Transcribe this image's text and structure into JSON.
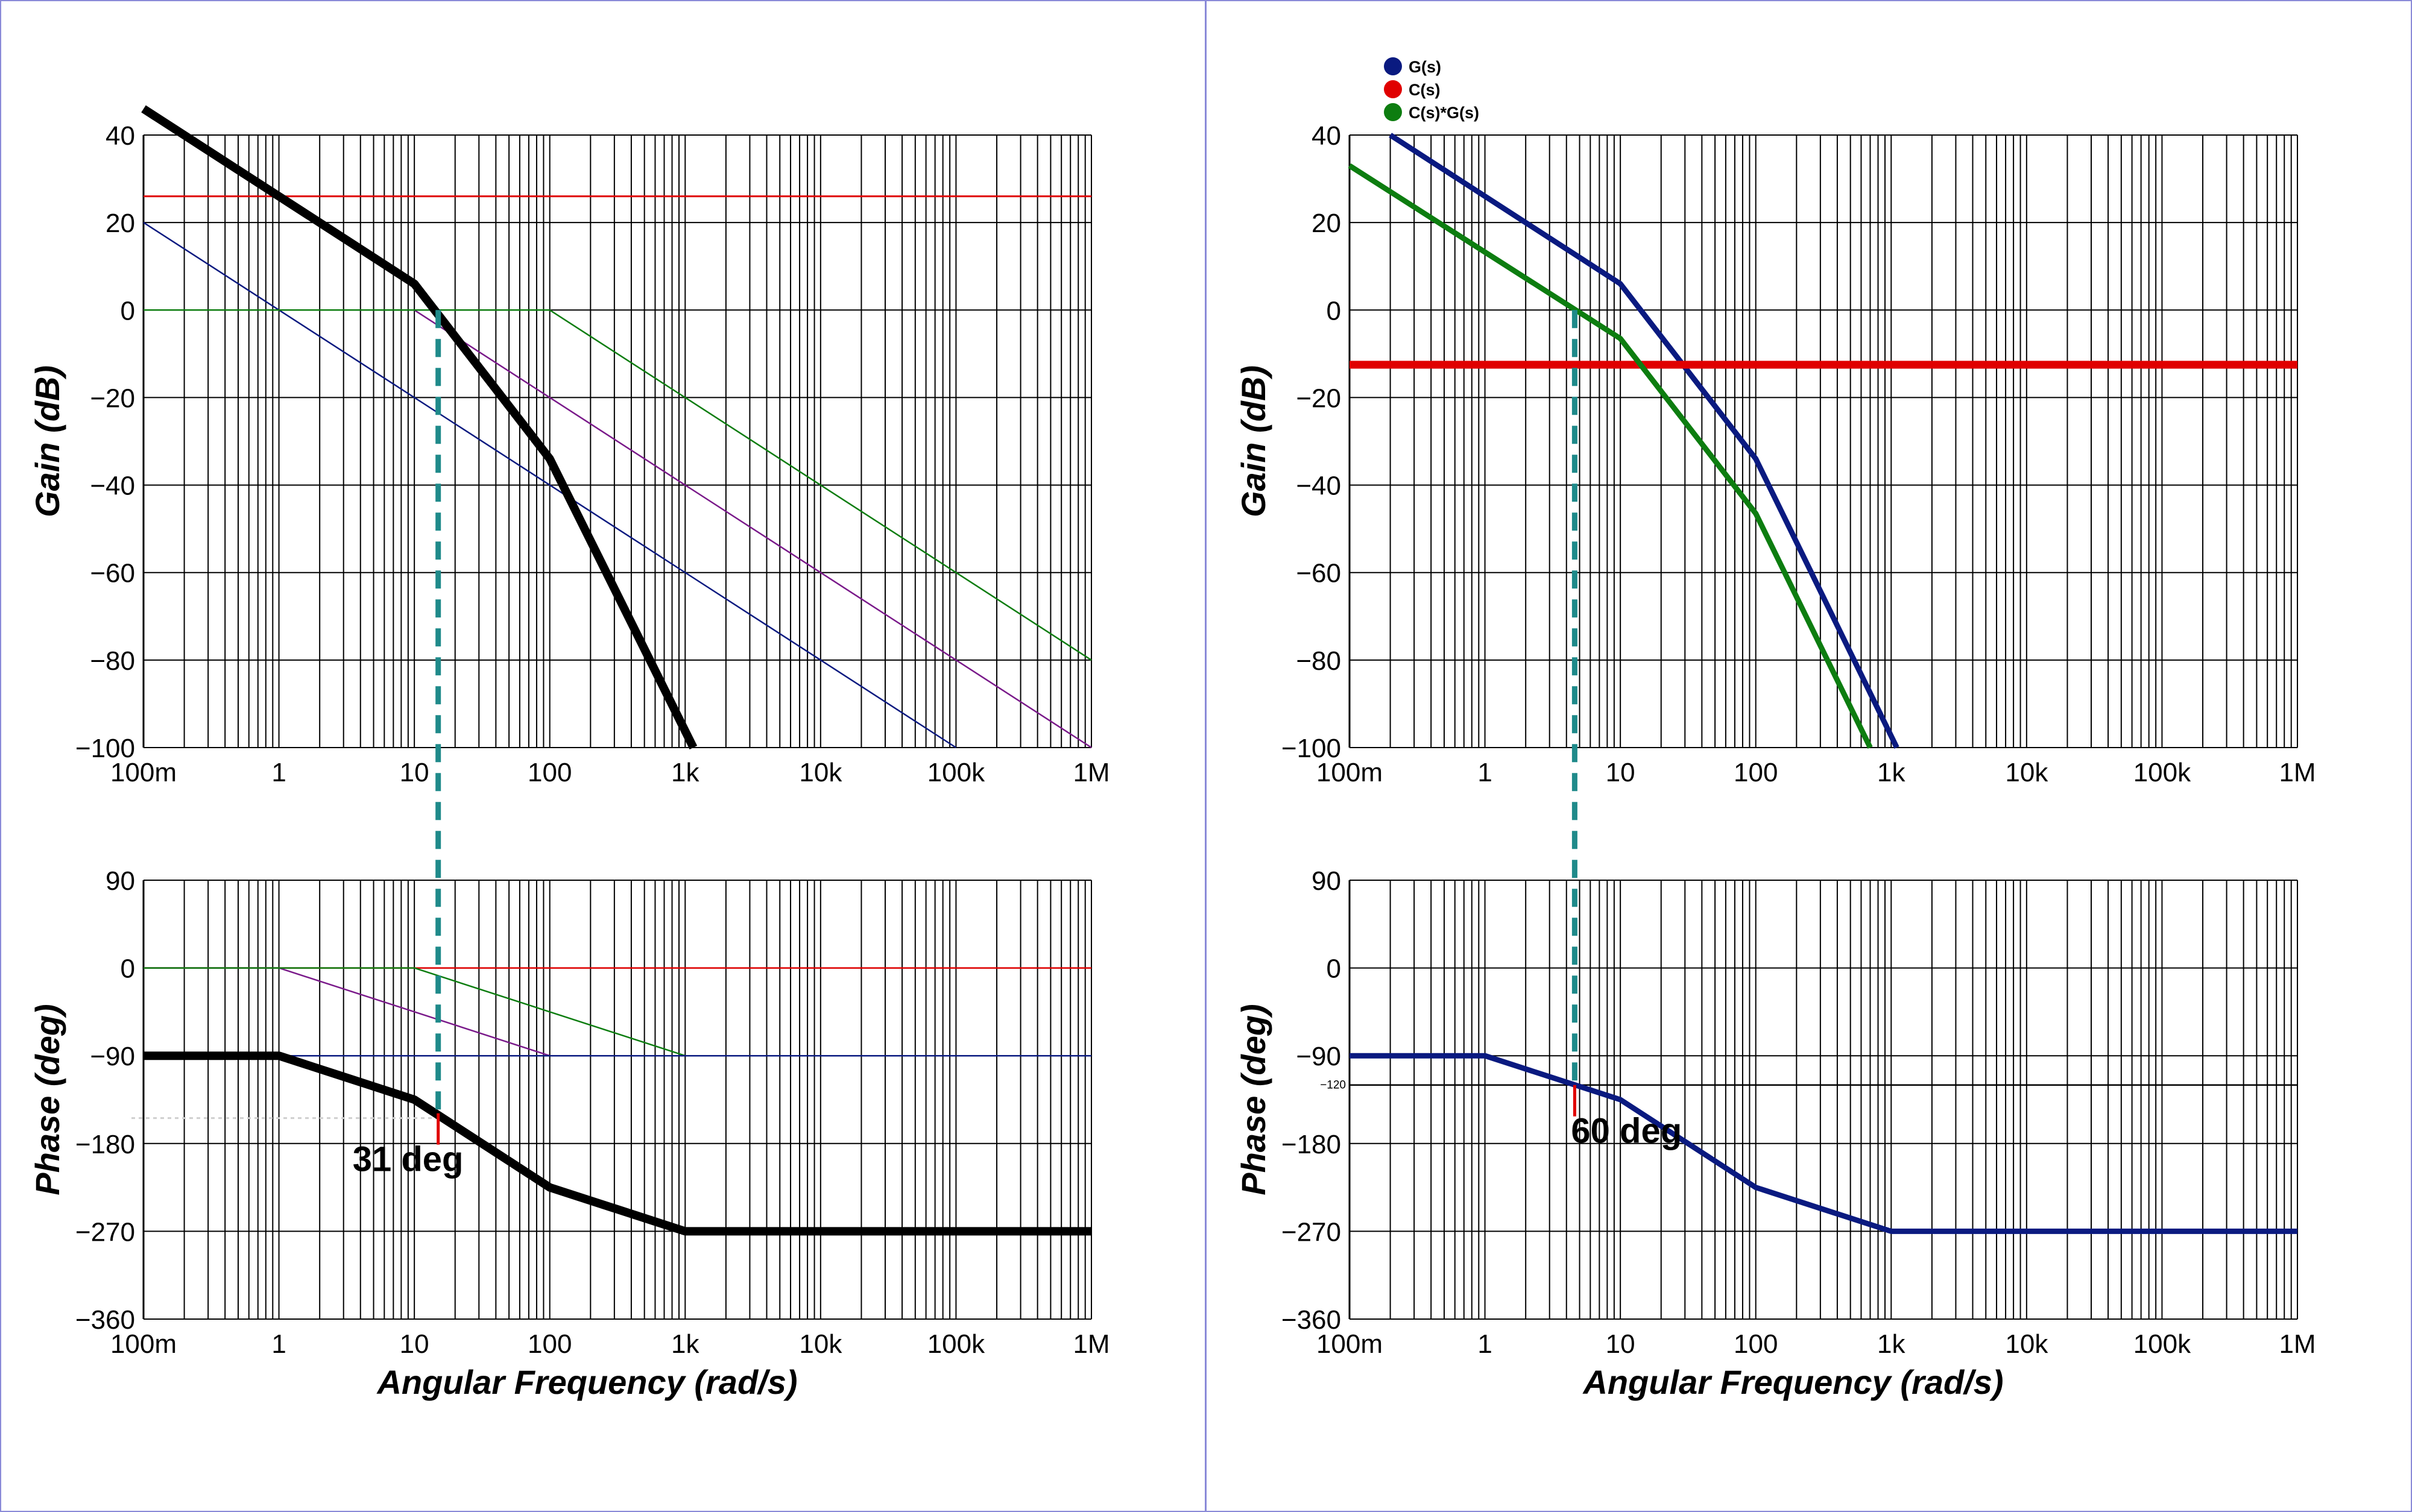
{
  "colors": {
    "G": "#0a1a80",
    "C": "#e00000",
    "CG": "#0d7d10",
    "purple": "#7a1a8a",
    "thick": "#000000",
    "guide": "#1f8a8a",
    "border": "#8a8ad8"
  },
  "chart_data": [
    {
      "type": "line",
      "panel": "left-gain",
      "xscale": "log",
      "xlim": [
        0.1,
        1000000
      ],
      "ylim": [
        -100,
        40
      ],
      "yticks": [
        40,
        20,
        0,
        -20,
        -40,
        -60,
        -80,
        -100
      ],
      "ytick_labels": [
        "40",
        "20",
        "0",
        "−20",
        "−40",
        "−60",
        "−80",
        "−100"
      ],
      "xticks": [
        0.1,
        1,
        10,
        100,
        1000,
        10000,
        100000,
        1000000
      ],
      "xtick_labels": [
        "100m",
        "1",
        "10",
        "100",
        "1k",
        "10k",
        "100k",
        "1M"
      ],
      "ylabel": "Gain (dB)",
      "xlabel": "",
      "series": [
        {
          "color": "C",
          "width": 3,
          "x": [
            0.1,
            1000000
          ],
          "y": [
            26,
            26
          ]
        },
        {
          "color": "G",
          "width": 2.5,
          "x": [
            0.1,
            100000
          ],
          "y": [
            20,
            -100
          ]
        },
        {
          "color": "purple",
          "width": 2.5,
          "x": [
            0.1,
            10,
            1000000
          ],
          "y": [
            0,
            0,
            -100
          ]
        },
        {
          "color": "CG",
          "width": 2.5,
          "x": [
            0.1,
            100,
            1000000
          ],
          "y": [
            0,
            0,
            -80
          ]
        },
        {
          "color": "thick",
          "width": 14,
          "x": [
            0.1,
            10,
            100,
            1150
          ],
          "y": [
            46,
            6,
            -34,
            -100
          ]
        }
      ],
      "guide": {
        "x": 15,
        "y_top": 0
      }
    },
    {
      "type": "line",
      "panel": "left-phase",
      "xscale": "log",
      "xlim": [
        0.1,
        1000000
      ],
      "ylim": [
        -360,
        90
      ],
      "yticks": [
        90,
        0,
        -90,
        -180,
        -270,
        -360
      ],
      "ytick_labels": [
        "90",
        "0",
        "−90",
        "−180",
        "−270",
        "−360"
      ],
      "xticks": [
        0.1,
        1,
        10,
        100,
        1000,
        10000,
        100000,
        1000000
      ],
      "xtick_labels": [
        "100m",
        "1",
        "10",
        "100",
        "1k",
        "10k",
        "100k",
        "1M"
      ],
      "ylabel": "Phase (deg)",
      "xlabel": "Angular Frequency (rad/s)",
      "series": [
        {
          "color": "C",
          "width": 2.5,
          "x": [
            0.1,
            1000000
          ],
          "y": [
            0,
            0
          ]
        },
        {
          "color": "purple",
          "width": 2.5,
          "x": [
            0.1,
            1,
            100,
            1000000
          ],
          "y": [
            0,
            0,
            -90,
            -90
          ]
        },
        {
          "color": "CG",
          "width": 2.5,
          "x": [
            0.1,
            10,
            1000,
            1000000
          ],
          "y": [
            0,
            0,
            -90,
            -90
          ]
        },
        {
          "color": "G",
          "width": 2.5,
          "x": [
            0.1,
            1000000
          ],
          "y": [
            -90,
            -90
          ]
        },
        {
          "color": "thick",
          "width": 14,
          "x": [
            0.1,
            1,
            10,
            100,
            1000,
            1000000
          ],
          "y": [
            -90,
            -90,
            -135,
            -225,
            -270,
            -270
          ]
        }
      ],
      "guide": {
        "x": 15,
        "y_marker": -149
      },
      "annotation": "31 deg"
    },
    {
      "type": "line",
      "panel": "right-gain",
      "xscale": "log",
      "xlim": [
        0.1,
        1000000
      ],
      "ylim": [
        -100,
        40
      ],
      "yticks": [
        40,
        20,
        0,
        -20,
        -40,
        -60,
        -80,
        -100
      ],
      "ytick_labels": [
        "40",
        "20",
        "0",
        "−20",
        "−40",
        "−60",
        "−80",
        "−100"
      ],
      "xticks": [
        0.1,
        1,
        10,
        100,
        1000,
        10000,
        100000,
        1000000
      ],
      "xtick_labels": [
        "100m",
        "1",
        "10",
        "100",
        "1k",
        "10k",
        "100k",
        "1M"
      ],
      "ylabel": "Gain (dB)",
      "xlabel": "",
      "legend": [
        "G(s)",
        "C(s)",
        "C(s)*G(s)"
      ],
      "legend_colors": [
        "G",
        "C",
        "CG"
      ],
      "series": [
        {
          "name": "G(s)",
          "color": "G",
          "width": 9,
          "x": [
            0.2,
            10,
            100,
            1100
          ],
          "y": [
            40,
            6,
            -34,
            -100
          ]
        },
        {
          "name": "C(s)",
          "color": "C",
          "width": 13,
          "x": [
            0.1,
            1000000
          ],
          "y": [
            -12.5,
            -12.5
          ]
        },
        {
          "name": "C(s)*G(s)",
          "color": "CG",
          "width": 9,
          "x": [
            0.1,
            10,
            100,
            700
          ],
          "y": [
            33,
            -6.5,
            -46.5,
            -100
          ]
        }
      ],
      "guide": {
        "x": 4.6,
        "y_top": 0
      }
    },
    {
      "type": "line",
      "panel": "right-phase",
      "xscale": "log",
      "xlim": [
        0.1,
        1000000
      ],
      "ylim": [
        -360,
        90
      ],
      "yticks": [
        90,
        0,
        -90,
        -180,
        -270,
        -360
      ],
      "ytick_labels": [
        "90",
        "0",
        "−90",
        "−180",
        "−270",
        "−360"
      ],
      "xticks": [
        0.1,
        1,
        10,
        100,
        1000,
        10000,
        100000,
        1000000
      ],
      "xtick_labels": [
        "100m",
        "1",
        "10",
        "100",
        "1k",
        "10k",
        "100k",
        "1M"
      ],
      "ylabel": "Phase (deg)",
      "xlabel": "Angular Frequency (rad/s)",
      "extra_hline": {
        "y": -120,
        "label": "−120"
      },
      "series": [
        {
          "color": "G",
          "width": 9,
          "x": [
            0.1,
            1,
            10,
            100,
            1000,
            1000000
          ],
          "y": [
            -90,
            -90,
            -135,
            -225,
            -270,
            -270
          ]
        }
      ],
      "guide": {
        "x": 4.6,
        "y_marker": -120
      },
      "annotation": "60 deg"
    }
  ]
}
